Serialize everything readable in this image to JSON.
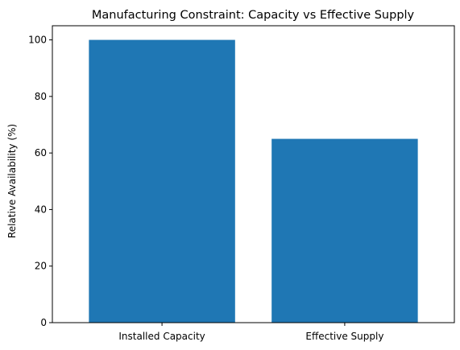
{
  "chart_data": {
    "type": "bar",
    "title": "Manufacturing Constraint: Capacity vs Effective Supply",
    "xlabel": "",
    "ylabel": "Relative Availability (%)",
    "categories": [
      "Installed Capacity",
      "Effective Supply"
    ],
    "values": [
      100,
      65
    ],
    "ylim": [
      0,
      105
    ],
    "yticks": [
      0,
      20,
      40,
      60,
      80,
      100
    ],
    "bar_color": "#1f77b4",
    "grid": false,
    "legend": "none"
  }
}
